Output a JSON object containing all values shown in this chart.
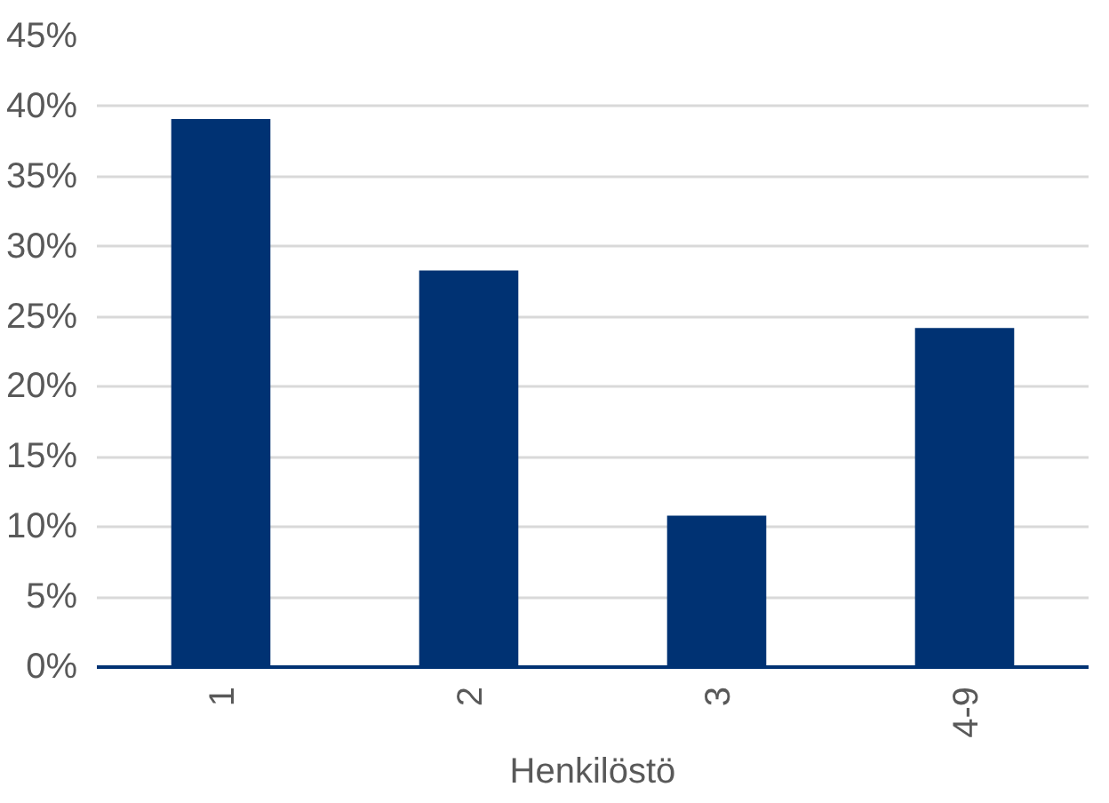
{
  "chart_data": {
    "type": "bar",
    "xlabel": "Henkilöstö",
    "categories": [
      "1",
      "2",
      "3",
      "4-9"
    ],
    "values": [
      39.1,
      28.3,
      10.8,
      24.2
    ],
    "color": "#003273",
    "ylim": [
      0,
      45
    ],
    "yticks": [
      {
        "value": 0,
        "label": "0%"
      },
      {
        "value": 5,
        "label": "5%"
      },
      {
        "value": 10,
        "label": "10%"
      },
      {
        "value": 15,
        "label": "15%"
      },
      {
        "value": 20,
        "label": "20%"
      },
      {
        "value": 25,
        "label": "25%"
      },
      {
        "value": 30,
        "label": "30%"
      },
      {
        "value": 35,
        "label": "35%"
      },
      {
        "value": 40,
        "label": "40%"
      },
      {
        "value": 45,
        "label": "45%"
      }
    ],
    "grid": "y"
  }
}
